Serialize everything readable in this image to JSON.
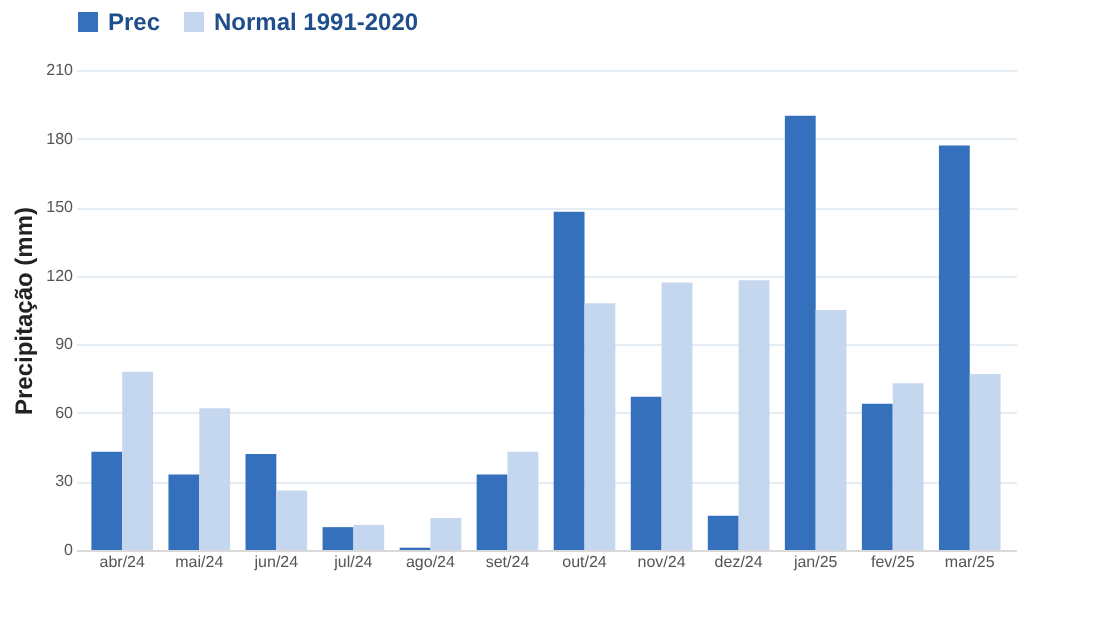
{
  "chart_data": {
    "type": "bar",
    "ylabel": "Precipitação (mm)",
    "categories": [
      "abr/24",
      "mai/24",
      "jun/24",
      "jul/24",
      "ago/24",
      "set/24",
      "out/24",
      "nov/24",
      "dez/24",
      "jan/25",
      "fev/25",
      "mar/25"
    ],
    "series": [
      {
        "name": "Prec",
        "color": "#3470bb",
        "values": [
          43,
          33,
          42,
          10,
          1,
          33,
          148,
          67,
          15,
          190,
          64,
          177
        ]
      },
      {
        "name": "Normal 1991-2020",
        "color": "#c5d7ee",
        "values": [
          78,
          62,
          26,
          11,
          14,
          43,
          108,
          117,
          118,
          105,
          73,
          77
        ]
      }
    ],
    "ylim": [
      0,
      210
    ],
    "yticks": [
      0,
      30,
      60,
      90,
      120,
      150,
      180,
      210
    ],
    "grid": "y",
    "legend": "top"
  }
}
